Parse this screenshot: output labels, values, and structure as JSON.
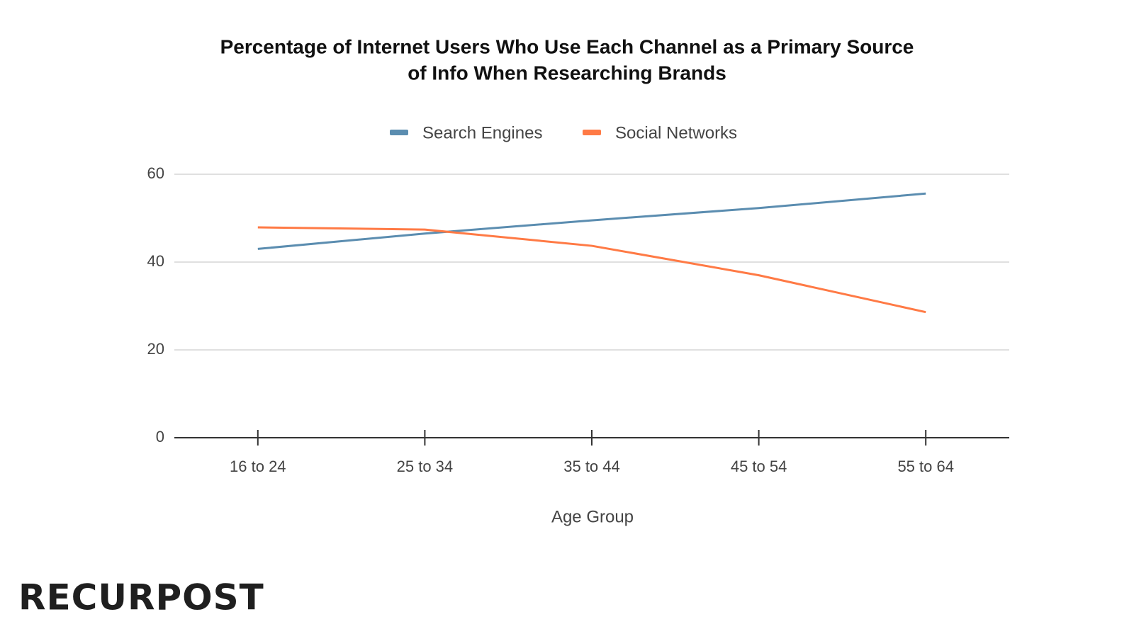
{
  "chart_data": {
    "type": "line",
    "title": [
      "Percentage of Internet Users Who Use Each Channel as a Primary Source",
      "of Info When Researching Brands"
    ],
    "x_label": "Age Group",
    "categories": [
      "16 to 24",
      "25 to 34",
      "35 to 44",
      "45 to 54",
      "55 to 64"
    ],
    "series": [
      {
        "name": "Search Engines",
        "color": "#5b8db0",
        "values": [
          43,
          46.5,
          49.5,
          52.3,
          55.6
        ]
      },
      {
        "name": "Social Networks",
        "color": "#ff7a45",
        "values": [
          47.9,
          47.4,
          43.7,
          37,
          28.6
        ]
      }
    ],
    "ylim": [
      0,
      60
    ],
    "yticks": [
      0,
      20,
      40,
      60
    ],
    "grid": true,
    "legend": "top"
  },
  "logo": "RECURPOST"
}
